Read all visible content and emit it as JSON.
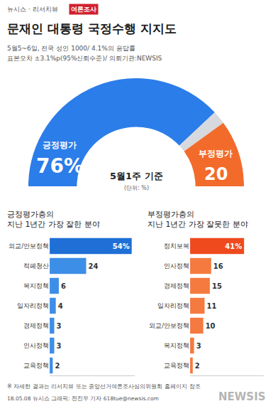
{
  "header": {
    "source": "뉴시스 · 리서치뷰",
    "badge": "여론조사",
    "title": "문재인 대통령 국정수행 지지도",
    "subtitle": [
      "5월5~6일, 전국 성인 1000/ 4.1%의 응답률",
      "표본오차 ±3.1%p(95%신뢰수준)/ 의뢰기관:NEWSIS"
    ]
  },
  "chart_data": [
    {
      "type": "pie",
      "categories": [
        "긍정평가",
        null,
        "부정평가"
      ],
      "values": [
        76,
        4,
        20
      ],
      "value_labels": [
        "76%",
        null,
        "20"
      ],
      "colors": [
        "#2b7de9",
        "#d6d9dd",
        "#f36b2b"
      ],
      "data_labels": true,
      "annotations": [
        "5월1주 기준",
        "(단위: %)"
      ]
    },
    {
      "type": "bar",
      "orientation": "horizontal",
      "title": "긍정평가층의 지난 1년간 가장 잘한 분야",
      "categories": [
        "외교/안보정책",
        "적폐청산",
        "복지정책",
        "일자리정책",
        "경제정책",
        "인사정책",
        "교육정책"
      ],
      "values": [
        54,
        24,
        6,
        4,
        3,
        3,
        2
      ],
      "value_labels": [
        "54%",
        "24",
        "6",
        "4",
        "3",
        "3",
        "2"
      ],
      "colors": [
        "#1f6fd6",
        "#3d8ee6",
        "#3d8ee6",
        "#3d8ee6",
        "#3d8ee6",
        "#3d8ee6",
        "#3d8ee6"
      ],
      "xlim": [
        0,
        56
      ],
      "tick_labels": "y",
      "data_labels": true
    },
    {
      "type": "bar",
      "orientation": "horizontal",
      "title": "부정평가층의 지난 1년간 가장 잘못한 분야",
      "categories": [
        "정치보복",
        "인사정책",
        "경제정책",
        "일자리정책",
        "외교/안보정책",
        "복지정책",
        "교육정책"
      ],
      "values": [
        41,
        16,
        15,
        11,
        10,
        3,
        2
      ],
      "value_labels": [
        "41%",
        "16",
        "15",
        "11",
        "10",
        "3",
        "2"
      ],
      "colors": [
        "#ee4a1e",
        "#f47a3f",
        "#f47a3f",
        "#f47a3f",
        "#f47a3f",
        "#f47a3f",
        "#f47a3f"
      ],
      "xlim": [
        0,
        56
      ],
      "tick_labels": "y",
      "data_labels": true
    }
  ],
  "footer": {
    "note": "※ 자세한 결과는 리서치뷰 또는 중앙선거여론조사심의위원회 홈페이지 참조",
    "credit": "18.05.08 뉴시스 그래픽: 전진우 기자 618tue@newsis.com",
    "watermark": "NEWSIS"
  }
}
